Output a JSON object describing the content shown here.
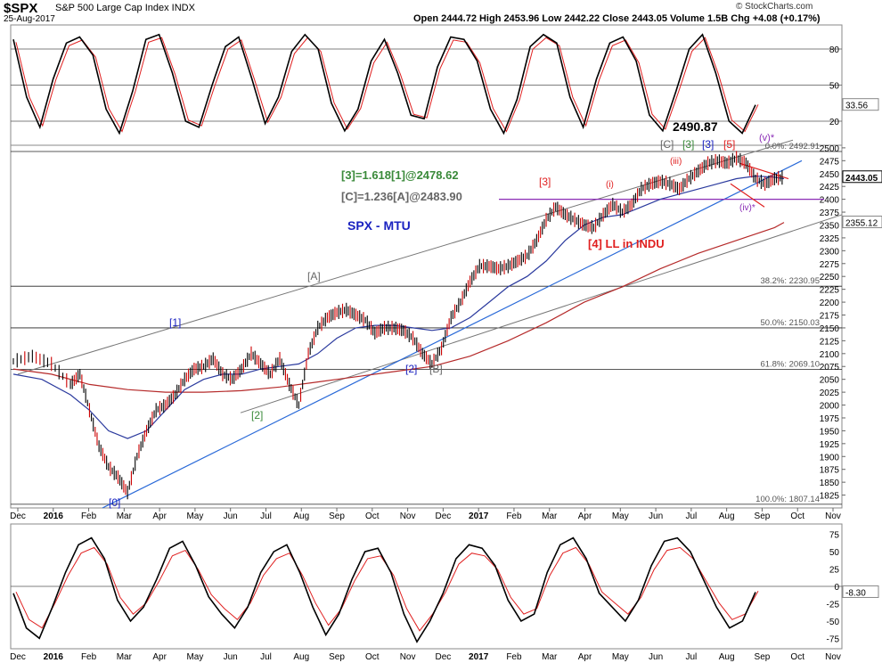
{
  "header": {
    "symbol": "$SPX",
    "description": "S&P 500 Large Cap Index  INDX",
    "date": "25-Aug-2017",
    "ohlc": "Open 2444.72  High 2453.96  Low 2442.22  Close 2443.05  Volume 1.5B  Chg +4.08 (+0.17%)",
    "credit": "© StockCharts.com"
  },
  "colors": {
    "price_bar": "#000000",
    "down_bar": "#cc0000",
    "ma_fast": "#2b3a9e",
    "ma_slow": "#b52a2a",
    "blue_trendline": "#2a6ad8",
    "channel": "#777777",
    "fib": "#222222",
    "purple": "#8a2cb6",
    "red_label": "#e02020",
    "green_label": "#3a8a3a",
    "gray_label": "#666666",
    "navy_label": "#1a22c0",
    "osc_line": "#000000",
    "osc_signal": "#e02020"
  },
  "chart_data": [
    {
      "type": "line",
      "panel": "top oscillator",
      "ylim": [
        0,
        100
      ],
      "y_ticks": [
        "80",
        "50",
        "20"
      ],
      "levels": [
        80,
        50,
        20
      ],
      "last_value_label": "33.56",
      "series": [
        {
          "values": [
            88,
            40,
            15,
            55,
            85,
            90,
            75,
            30,
            10,
            45,
            88,
            92,
            60,
            20,
            15,
            50,
            82,
            90,
            55,
            18,
            40,
            78,
            92,
            80,
            35,
            12,
            30,
            70,
            88,
            60,
            25,
            22,
            65,
            90,
            88,
            70,
            30,
            10,
            38,
            82,
            92,
            85,
            40,
            15,
            55,
            85,
            90,
            70,
            25,
            12,
            45,
            80,
            92,
            60,
            20,
            10,
            33.56
          ]
        }
      ]
    },
    {
      "type": "candlestick",
      "panel": "price",
      "title": "SPX - MTU",
      "ylim": [
        1800,
        2505
      ],
      "y_ticks": [
        "2500",
        "2475",
        "2450",
        "2425",
        "2400",
        "2375",
        "2350",
        "2325",
        "2300",
        "2275",
        "2250",
        "2225",
        "2200",
        "2175",
        "2150",
        "2125",
        "2100",
        "2075",
        "2050",
        "2025",
        "2000",
        "1975",
        "1950",
        "1925",
        "1900",
        "1875",
        "1850",
        "1825"
      ],
      "x_ticks": [
        "Dec",
        "2016",
        "Feb",
        "Mar",
        "Apr",
        "May",
        "Jun",
        "Jul",
        "Aug",
        "Sep",
        "Oct",
        "Nov",
        "Dec",
        "2017",
        "Feb",
        "Mar",
        "Apr",
        "May",
        "Jun",
        "Jul",
        "Aug",
        "Sep",
        "Oct",
        "Nov"
      ],
      "right_labels": {
        "close": "2443.05",
        "ma": "2355.12"
      },
      "fib_levels": [
        {
          "label": "0.0%: 2492.91",
          "value": 2492.91
        },
        {
          "label": "38.2%: 2230.95",
          "value": 2230.95
        },
        {
          "label": "50.0%: 2150.03",
          "value": 2150.03
        },
        {
          "label": "61.8%: 2069.10",
          "value": 2069.1
        },
        {
          "label": "100.0%: 1807.14",
          "value": 1807.14
        }
      ],
      "price_path": [
        [
          0,
          2085
        ],
        [
          2,
          2095
        ],
        [
          4,
          2080
        ],
        [
          6,
          2040
        ],
        [
          7,
          2060
        ],
        [
          8,
          1990
        ],
        [
          9,
          1920
        ],
        [
          10,
          1880
        ],
        [
          11,
          1860
        ],
        [
          12,
          1830
        ],
        [
          13,
          1900
        ],
        [
          14,
          1950
        ],
        [
          15,
          1990
        ],
        [
          16,
          2000
        ],
        [
          17,
          2020
        ],
        [
          18,
          2050
        ],
        [
          19,
          2070
        ],
        [
          20,
          2075
        ],
        [
          21,
          2090
        ],
        [
          22,
          2060
        ],
        [
          23,
          2050
        ],
        [
          24,
          2070
        ],
        [
          25,
          2100
        ],
        [
          26,
          2080
        ],
        [
          27,
          2060
        ],
        [
          28,
          2090
        ],
        [
          29,
          2040
        ],
        [
          30,
          2000
        ],
        [
          31,
          2100
        ],
        [
          32,
          2150
        ],
        [
          33,
          2170
        ],
        [
          34,
          2180
        ],
        [
          35,
          2185
        ],
        [
          36,
          2175
        ],
        [
          37,
          2165
        ],
        [
          38,
          2140
        ],
        [
          39,
          2150
        ],
        [
          40,
          2150
        ],
        [
          41,
          2145
        ],
        [
          42,
          2130
        ],
        [
          43,
          2100
        ],
        [
          44,
          2080
        ],
        [
          45,
          2110
        ],
        [
          46,
          2170
        ],
        [
          47,
          2200
        ],
        [
          48,
          2240
        ],
        [
          49,
          2270
        ],
        [
          50,
          2270
        ],
        [
          51,
          2265
        ],
        [
          52,
          2270
        ],
        [
          53,
          2280
        ],
        [
          54,
          2290
        ],
        [
          55,
          2320
        ],
        [
          56,
          2360
        ],
        [
          57,
          2385
        ],
        [
          58,
          2370
        ],
        [
          59,
          2360
        ],
        [
          60,
          2350
        ],
        [
          61,
          2345
        ],
        [
          62,
          2370
        ],
        [
          63,
          2390
        ],
        [
          64,
          2375
        ],
        [
          65,
          2390
        ],
        [
          66,
          2420
        ],
        [
          67,
          2430
        ],
        [
          68,
          2435
        ],
        [
          69,
          2430
        ],
        [
          70,
          2420
        ],
        [
          71,
          2440
        ],
        [
          72,
          2455
        ],
        [
          73,
          2470
        ],
        [
          74,
          2475
        ],
        [
          75,
          2470
        ],
        [
          76,
          2480
        ],
        [
          77,
          2470
        ],
        [
          78,
          2440
        ],
        [
          79,
          2430
        ],
        [
          80,
          2440
        ],
        [
          81,
          2443
        ]
      ],
      "ma_fast_path": [
        [
          0,
          2060
        ],
        [
          3,
          2050
        ],
        [
          6,
          2020
        ],
        [
          8,
          1990
        ],
        [
          10,
          1950
        ],
        [
          12,
          1935
        ],
        [
          14,
          1950
        ],
        [
          16,
          1990
        ],
        [
          18,
          2030
        ],
        [
          20,
          2050
        ],
        [
          22,
          2060
        ],
        [
          24,
          2060
        ],
        [
          26,
          2070
        ],
        [
          28,
          2075
        ],
        [
          30,
          2080
        ],
        [
          32,
          2100
        ],
        [
          34,
          2130
        ],
        [
          36,
          2150
        ],
        [
          38,
          2155
        ],
        [
          40,
          2155
        ],
        [
          42,
          2150
        ],
        [
          44,
          2145
        ],
        [
          46,
          2150
        ],
        [
          48,
          2170
        ],
        [
          50,
          2200
        ],
        [
          52,
          2230
        ],
        [
          54,
          2250
        ],
        [
          56,
          2280
        ],
        [
          58,
          2320
        ],
        [
          60,
          2350
        ],
        [
          62,
          2365
        ],
        [
          64,
          2370
        ],
        [
          66,
          2385
        ],
        [
          68,
          2400
        ],
        [
          70,
          2410
        ],
        [
          72,
          2420
        ],
        [
          74,
          2430
        ],
        [
          76,
          2440
        ],
        [
          78,
          2445
        ],
        [
          80,
          2443
        ],
        [
          81,
          2440
        ]
      ],
      "ma_slow_path": [
        [
          0,
          2070
        ],
        [
          4,
          2060
        ],
        [
          8,
          2040
        ],
        [
          12,
          2030
        ],
        [
          16,
          2025
        ],
        [
          20,
          2025
        ],
        [
          24,
          2028
        ],
        [
          28,
          2035
        ],
        [
          32,
          2045
        ],
        [
          36,
          2055
        ],
        [
          40,
          2065
        ],
        [
          44,
          2075
        ],
        [
          48,
          2095
        ],
        [
          52,
          2125
        ],
        [
          56,
          2160
        ],
        [
          60,
          2200
        ],
        [
          64,
          2230
        ],
        [
          68,
          2265
        ],
        [
          72,
          2295
        ],
        [
          76,
          2320
        ],
        [
          80,
          2345
        ],
        [
          81,
          2355
        ]
      ],
      "annotations": [
        {
          "text": "[3]=1.618[1]@2478.62",
          "color": "green"
        },
        {
          "text": "[C]=1.236[A]@2483.90",
          "color": "gray"
        },
        {
          "text": "2490.87",
          "color": "black"
        },
        {
          "text": "[C]",
          "color": "gray"
        },
        {
          "text": "[3]",
          "color": "green"
        },
        {
          "text": "[3]",
          "color": "navy"
        },
        {
          "text": "[5]",
          "color": "red"
        },
        {
          "text": "(v)*",
          "color": "purple"
        },
        {
          "text": "(iii)",
          "color": "red"
        },
        {
          "text": "(i)",
          "color": "red"
        },
        {
          "text": "[3]",
          "color": "red"
        },
        {
          "text": "(iv)*",
          "color": "purple"
        },
        {
          "text": "[4] LL in INDU",
          "color": "red"
        },
        {
          "text": "[A]",
          "color": "gray"
        },
        {
          "text": "[1]",
          "color": "navy"
        },
        {
          "text": "[2]",
          "color": "navy"
        },
        {
          "text": "[B]",
          "color": "gray"
        },
        {
          "text": "[2]",
          "color": "green"
        },
        {
          "text": "[0]",
          "color": "navy"
        }
      ]
    },
    {
      "type": "line",
      "panel": "bottom oscillator",
      "ylim": [
        -90,
        90
      ],
      "y_ticks": [
        "75",
        "50",
        "25",
        "0",
        "-25",
        "-50",
        "-75"
      ],
      "last_value_label": "-8.30",
      "series": [
        {
          "values": [
            -10,
            -60,
            -75,
            -30,
            20,
            60,
            70,
            40,
            -20,
            -50,
            -30,
            10,
            55,
            65,
            30,
            -15,
            -40,
            -60,
            -30,
            20,
            50,
            60,
            20,
            -30,
            -70,
            -40,
            10,
            50,
            55,
            20,
            -40,
            -80,
            -50,
            -10,
            40,
            60,
            55,
            30,
            -20,
            -50,
            -40,
            20,
            60,
            70,
            40,
            -10,
            -30,
            -50,
            -20,
            30,
            65,
            70,
            50,
            10,
            -30,
            -60,
            -50,
            -8.3
          ]
        }
      ]
    }
  ]
}
